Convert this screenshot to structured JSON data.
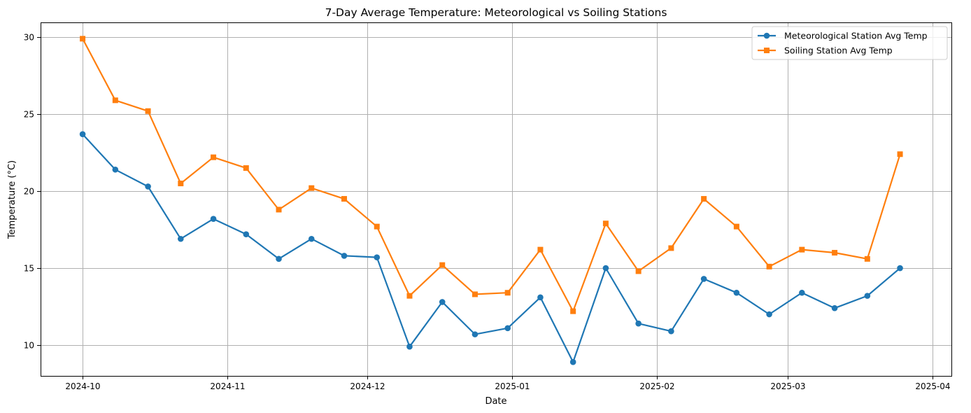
{
  "chart_data": {
    "type": "line",
    "title": "7-Day Average Temperature: Meteorological vs Soiling Stations",
    "xlabel": "Date",
    "ylabel": "Temperature (°C)",
    "x_axis_type": "date",
    "xlim": [
      "2024-09-22",
      "2025-04-05"
    ],
    "ylim": [
      8.0,
      30.96
    ],
    "x_ticks": [
      "2024-10-01",
      "2024-11-01",
      "2024-12-01",
      "2025-01-01",
      "2025-02-01",
      "2025-03-01",
      "2025-04-01"
    ],
    "x_tick_labels": [
      "2024-10",
      "2024-11",
      "2024-12",
      "2025-01",
      "2025-02",
      "2025-03",
      "2025-04"
    ],
    "y_ticks": [
      10,
      15,
      20,
      25,
      30
    ],
    "grid": true,
    "legend_position": "top-right",
    "x": [
      "2024-10-01",
      "2024-10-08",
      "2024-10-15",
      "2024-10-22",
      "2024-10-29",
      "2024-11-05",
      "2024-11-12",
      "2024-11-19",
      "2024-11-26",
      "2024-12-03",
      "2024-12-10",
      "2024-12-17",
      "2024-12-24",
      "2024-12-31",
      "2025-01-07",
      "2025-01-14",
      "2025-01-21",
      "2025-01-28",
      "2025-02-04",
      "2025-02-11",
      "2025-02-18",
      "2025-02-25",
      "2025-03-04",
      "2025-03-11",
      "2025-03-18",
      "2025-03-25"
    ],
    "series": [
      {
        "name": "Meteorological Station Avg Temp",
        "color": "#1f77b4",
        "marker": "circle",
        "values": [
          23.7,
          21.4,
          20.3,
          16.9,
          18.2,
          17.2,
          15.6,
          16.9,
          15.8,
          15.7,
          9.9,
          12.8,
          10.7,
          11.1,
          13.1,
          8.9,
          15.0,
          11.4,
          10.9,
          14.3,
          13.4,
          12.0,
          13.4,
          12.4,
          13.2,
          15.0
        ]
      },
      {
        "name": "Soiling Station Avg Temp",
        "color": "#ff7f0e",
        "marker": "square",
        "values": [
          29.9,
          25.9,
          25.2,
          20.5,
          22.2,
          21.5,
          18.8,
          20.2,
          19.5,
          17.7,
          13.2,
          15.2,
          13.3,
          13.4,
          16.2,
          12.2,
          17.9,
          14.8,
          16.3,
          19.5,
          17.7,
          15.1,
          16.2,
          16.0,
          15.6,
          22.4
        ]
      }
    ]
  }
}
